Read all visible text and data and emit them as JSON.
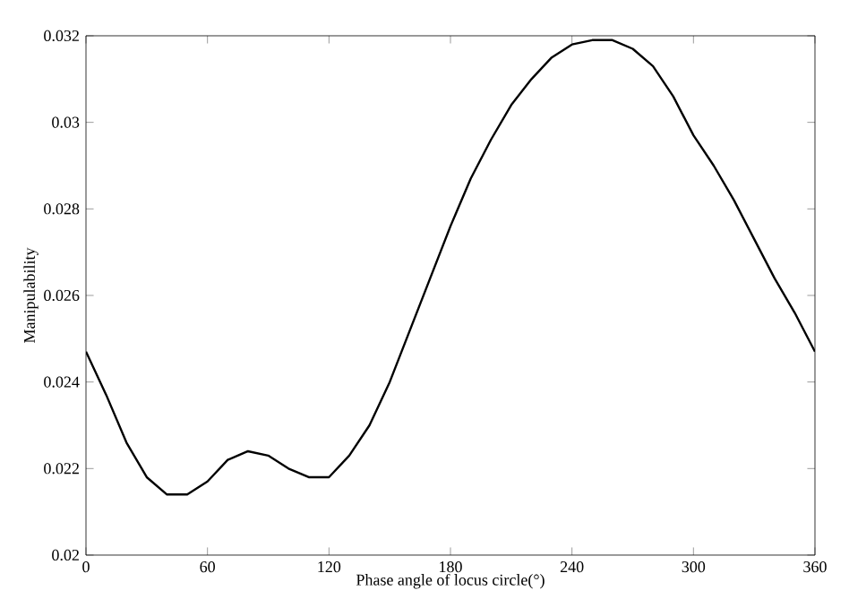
{
  "chart_data": {
    "type": "line",
    "xlabel": "Phase angle of locus circle(°)",
    "ylabel": "Manipulability",
    "x": [
      0,
      10,
      20,
      30,
      40,
      50,
      60,
      70,
      80,
      90,
      100,
      110,
      120,
      130,
      140,
      150,
      160,
      170,
      180,
      190,
      200,
      210,
      220,
      230,
      240,
      250,
      260,
      270,
      280,
      290,
      300,
      310,
      320,
      330,
      340,
      350,
      360
    ],
    "series": [
      {
        "color": "#000000",
        "values": [
          0.0247,
          0.0237,
          0.0226,
          0.0218,
          0.0214,
          0.0214,
          0.0217,
          0.0222,
          0.0224,
          0.0223,
          0.022,
          0.0218,
          0.0218,
          0.0223,
          0.023,
          0.024,
          0.0252,
          0.0264,
          0.0276,
          0.0287,
          0.0296,
          0.0304,
          0.031,
          0.0315,
          0.0318,
          0.0319,
          0.0319,
          0.0317,
          0.0313,
          0.0306,
          0.0297,
          0.029,
          0.0282,
          0.0273,
          0.0264,
          0.0256,
          0.0247
        ]
      }
    ],
    "xlim": [
      0,
      360
    ],
    "ylim": [
      0.02,
      0.032
    ],
    "xticks": [
      0,
      60,
      120,
      180,
      240,
      300,
      360
    ],
    "yticks": [
      0.02,
      0.022,
      0.024,
      0.026,
      0.028,
      0.03,
      0.032
    ],
    "grid": false,
    "marker": "none",
    "line_style": "solid"
  }
}
